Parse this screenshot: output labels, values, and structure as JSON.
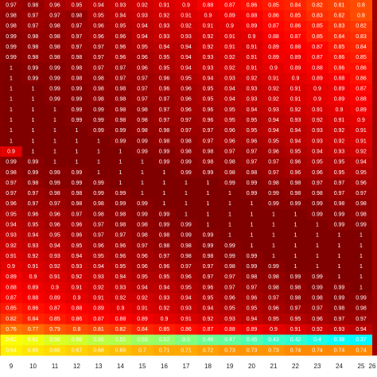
{
  "chart_data": {
    "type": "heatmap",
    "colormap": "jet",
    "clim": [
      0,
      1
    ],
    "categories": [
      "9",
      "10",
      "11",
      "12",
      "13",
      "14",
      "15",
      "16",
      "17",
      "18",
      "19",
      "20",
      "21",
      "22",
      "23",
      "24",
      "25",
      "26"
    ],
    "values": [
      [
        0.97,
        0.98,
        0.96,
        0.95,
        0.94,
        0.93,
        0.92,
        0.91,
        0.9,
        0.88,
        0.87,
        0.86,
        0.85,
        0.84,
        0.82,
        0.81,
        0.8,
        null
      ],
      [
        0.98,
        0.97,
        0.97,
        0.98,
        0.95,
        0.94,
        0.93,
        0.92,
        0.91,
        0.9,
        0.89,
        0.88,
        0.86,
        0.85,
        0.83,
        0.82,
        0.8,
        null
      ],
      [
        0.98,
        0.97,
        0.98,
        0.97,
        0.96,
        0.95,
        0.94,
        0.93,
        0.92,
        0.91,
        0.9,
        0.89,
        0.87,
        0.86,
        0.85,
        0.83,
        0.82,
        null
      ],
      [
        0.99,
        0.98,
        0.98,
        0.97,
        0.96,
        0.96,
        0.94,
        0.93,
        0.93,
        0.92,
        0.91,
        0.9,
        0.88,
        0.87,
        0.85,
        0.84,
        0.83,
        null
      ],
      [
        0.99,
        0.98,
        0.98,
        0.97,
        0.97,
        0.96,
        0.95,
        0.94,
        0.94,
        0.92,
        0.91,
        0.91,
        0.89,
        0.88,
        0.87,
        0.85,
        0.84,
        null
      ],
      [
        0.99,
        0.98,
        0.98,
        0.98,
        0.97,
        0.96,
        0.96,
        0.95,
        0.94,
        0.93,
        0.92,
        0.91,
        0.89,
        0.89,
        0.87,
        0.86,
        0.85,
        null
      ],
      [
        1,
        0.99,
        0.99,
        0.98,
        0.97,
        0.97,
        0.96,
        0.95,
        0.94,
        0.93,
        0.92,
        0.91,
        0.9,
        0.89,
        0.88,
        0.86,
        0.86,
        null
      ],
      [
        1,
        0.99,
        0.99,
        0.98,
        0.98,
        0.97,
        0.97,
        0.96,
        0.95,
        0.94,
        0.93,
        0.92,
        0.91,
        0.9,
        0.89,
        0.88,
        0.86,
        null
      ],
      [
        1,
        1,
        0.99,
        0.99,
        0.98,
        0.98,
        0.97,
        0.96,
        0.96,
        0.95,
        0.94,
        0.93,
        0.92,
        0.91,
        0.9,
        0.89,
        0.87,
        null
      ],
      [
        1,
        1,
        0.99,
        0.99,
        0.98,
        0.98,
        0.97,
        0.97,
        0.96,
        0.95,
        0.94,
        0.93,
        0.92,
        0.91,
        0.9,
        0.89,
        0.88,
        null
      ],
      [
        1,
        1,
        1,
        0.99,
        0.99,
        0.98,
        0.98,
        0.97,
        0.96,
        0.96,
        0.95,
        0.94,
        0.93,
        0.92,
        0.91,
        0.9,
        0.89,
        null
      ],
      [
        1,
        1,
        1,
        0.99,
        0.99,
        0.98,
        0.98,
        0.97,
        0.97,
        0.96,
        0.95,
        0.95,
        0.94,
        0.93,
        0.92,
        0.91,
        0.9,
        null
      ],
      [
        1,
        1,
        1,
        1,
        0.99,
        0.99,
        0.98,
        0.98,
        0.97,
        0.97,
        0.96,
        0.95,
        0.94,
        0.94,
        0.93,
        0.92,
        0.91,
        null
      ],
      [
        1,
        1,
        1,
        1,
        1,
        0.99,
        0.99,
        0.98,
        0.98,
        0.97,
        0.96,
        0.96,
        0.95,
        0.94,
        0.93,
        0.92,
        0.91,
        null
      ],
      [
        0.9,
        1,
        1,
        1,
        1,
        1,
        0.99,
        0.99,
        0.98,
        0.98,
        0.97,
        0.97,
        0.96,
        0.95,
        0.94,
        0.93,
        0.92,
        null
      ],
      [
        0.99,
        0.99,
        1,
        1,
        1,
        1,
        1,
        0.99,
        0.99,
        0.98,
        0.98,
        0.97,
        0.97,
        0.96,
        0.95,
        0.95,
        0.94,
        null
      ],
      [
        0.98,
        0.99,
        0.99,
        0.99,
        1,
        1,
        1,
        1,
        0.99,
        0.99,
        0.98,
        0.98,
        0.97,
        0.96,
        0.96,
        0.95,
        0.95,
        null
      ],
      [
        0.97,
        0.98,
        0.99,
        0.99,
        0.99,
        1,
        1,
        1,
        1,
        1,
        0.99,
        0.99,
        0.98,
        0.98,
        0.97,
        0.97,
        0.96,
        null
      ],
      [
        0.97,
        0.97,
        0.98,
        0.98,
        0.99,
        0.99,
        1,
        1,
        1,
        1,
        1,
        0.99,
        0.99,
        0.98,
        0.98,
        0.97,
        0.97,
        null
      ],
      [
        0.96,
        0.97,
        0.97,
        0.98,
        0.98,
        0.99,
        0.99,
        1,
        1,
        1,
        1,
        1,
        0.99,
        0.99,
        0.99,
        0.98,
        0.98,
        null
      ],
      [
        0.95,
        0.96,
        0.96,
        0.97,
        0.98,
        0.98,
        0.99,
        0.99,
        1,
        1,
        1,
        1,
        1,
        1,
        0.99,
        0.99,
        0.98,
        null
      ],
      [
        0.94,
        0.95,
        0.96,
        0.96,
        0.97,
        0.98,
        0.98,
        0.99,
        0.99,
        1,
        1,
        1,
        1,
        1,
        1,
        0.99,
        0.99,
        null
      ],
      [
        0.93,
        0.94,
        0.95,
        0.96,
        0.97,
        0.97,
        0.98,
        0.98,
        0.99,
        0.99,
        1,
        1,
        1,
        1,
        1,
        1,
        1,
        null
      ],
      [
        0.92,
        0.93,
        0.94,
        0.95,
        0.96,
        0.96,
        0.97,
        0.98,
        0.98,
        0.99,
        0.99,
        1,
        1,
        1,
        1,
        1,
        1,
        null
      ],
      [
        0.91,
        0.92,
        0.93,
        0.94,
        0.95,
        0.96,
        0.96,
        0.97,
        0.98,
        0.98,
        0.99,
        0.99,
        1,
        1,
        1,
        1,
        1,
        null
      ],
      [
        0.9,
        0.91,
        0.92,
        0.93,
        0.94,
        0.95,
        0.96,
        0.96,
        0.97,
        0.97,
        0.98,
        0.99,
        0.99,
        1,
        1,
        1,
        1,
        null
      ],
      [
        0.89,
        0.9,
        0.91,
        0.92,
        0.93,
        0.94,
        0.95,
        0.95,
        0.96,
        0.97,
        0.97,
        0.98,
        0.98,
        0.99,
        0.99,
        1,
        1,
        null
      ],
      [
        0.88,
        0.89,
        0.9,
        0.91,
        0.92,
        0.93,
        0.94,
        0.94,
        0.95,
        0.96,
        0.97,
        0.97,
        0.98,
        0.98,
        0.99,
        0.99,
        1,
        null
      ],
      [
        0.87,
        0.88,
        0.89,
        0.9,
        0.91,
        0.92,
        0.92,
        0.93,
        0.94,
        0.95,
        0.96,
        0.96,
        0.97,
        0.98,
        0.98,
        0.99,
        0.99,
        null
      ],
      [
        0.85,
        0.86,
        0.87,
        0.88,
        0.89,
        0.9,
        0.91,
        0.92,
        0.93,
        0.94,
        0.95,
        0.95,
        0.96,
        0.97,
        0.97,
        0.98,
        0.98,
        null
      ],
      [
        0.82,
        0.84,
        0.85,
        0.86,
        0.87,
        0.88,
        0.89,
        0.9,
        0.91,
        0.92,
        0.93,
        0.94,
        0.95,
        0.95,
        0.96,
        0.97,
        0.97,
        null
      ],
      [
        0.76,
        0.77,
        0.79,
        0.8,
        0.81,
        0.82,
        0.84,
        0.85,
        0.86,
        0.87,
        0.88,
        0.89,
        0.9,
        0.91,
        0.92,
        0.93,
        0.94,
        null
      ],
      [
        0.62,
        0.61,
        0.59,
        0.58,
        0.56,
        0.55,
        0.53,
        0.52,
        0.5,
        0.48,
        0.47,
        0.45,
        0.43,
        0.42,
        0.4,
        0.38,
        0.37,
        null
      ],
      [
        0.64,
        0.65,
        0.66,
        0.67,
        0.68,
        0.69,
        0.7,
        0.71,
        0.71,
        0.72,
        0.73,
        0.73,
        0.73,
        0.74,
        0.74,
        0.74,
        0.74,
        null
      ]
    ]
  }
}
